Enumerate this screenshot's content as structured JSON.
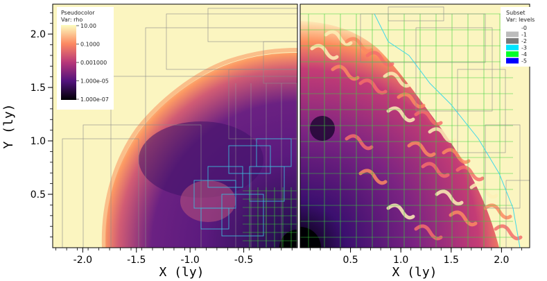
{
  "chart_data": [
    {
      "type": "heatmap",
      "title": "",
      "plot_type": "Pseudocolor",
      "variable": "Var: rho",
      "xlabel": "X (ly)",
      "ylabel": "Y (ly)",
      "xlim": [
        -2.28,
        0.0
      ],
      "ylim": [
        0.0,
        2.28
      ],
      "xticks": [
        -2.0,
        -1.5,
        -1.0,
        -0.5
      ],
      "xtick_labels": [
        "-2.0",
        "-1.5",
        "-1.0",
        "-0.5"
      ],
      "yticks": [
        0.5,
        1.0,
        1.5,
        2.0
      ],
      "ytick_labels": [
        "0.5",
        "1.0",
        "1.5",
        "2.0"
      ],
      "colorbar": {
        "scale": "log",
        "labels": [
          "10.00",
          "0.1000",
          "0.001000",
          "1.000e-05",
          "1.000e-07"
        ],
        "colors": [
          "#fcfdbf",
          "#fc8961",
          "#b73779",
          "#51127c",
          "#000004"
        ]
      },
      "grid_levels_shown": [
        "gray",
        "cyan",
        "green"
      ]
    },
    {
      "type": "heatmap",
      "title": "",
      "plot_type": "Subset",
      "variable": "Var: levels",
      "xlabel": "X (ly)",
      "ylabel": "",
      "xlim": [
        0.0,
        2.28
      ],
      "ylim": [
        0.0,
        2.28
      ],
      "xticks": [
        0.5,
        1.0,
        1.5,
        2.0
      ],
      "xtick_labels": [
        "0.5",
        "1.0",
        "1.5",
        "2.0"
      ],
      "legend": {
        "placement": "top-right",
        "entries": [
          {
            "label": "0",
            "color": "#ffffff"
          },
          {
            "label": "1",
            "color": "#bcbcbc"
          },
          {
            "label": "2",
            "color": "#7a7a7a"
          },
          {
            "label": "3",
            "color": "#00e5ff"
          },
          {
            "label": "4",
            "color": "#00ff2a"
          },
          {
            "label": "5",
            "color": "#0000ff"
          }
        ]
      }
    }
  ]
}
